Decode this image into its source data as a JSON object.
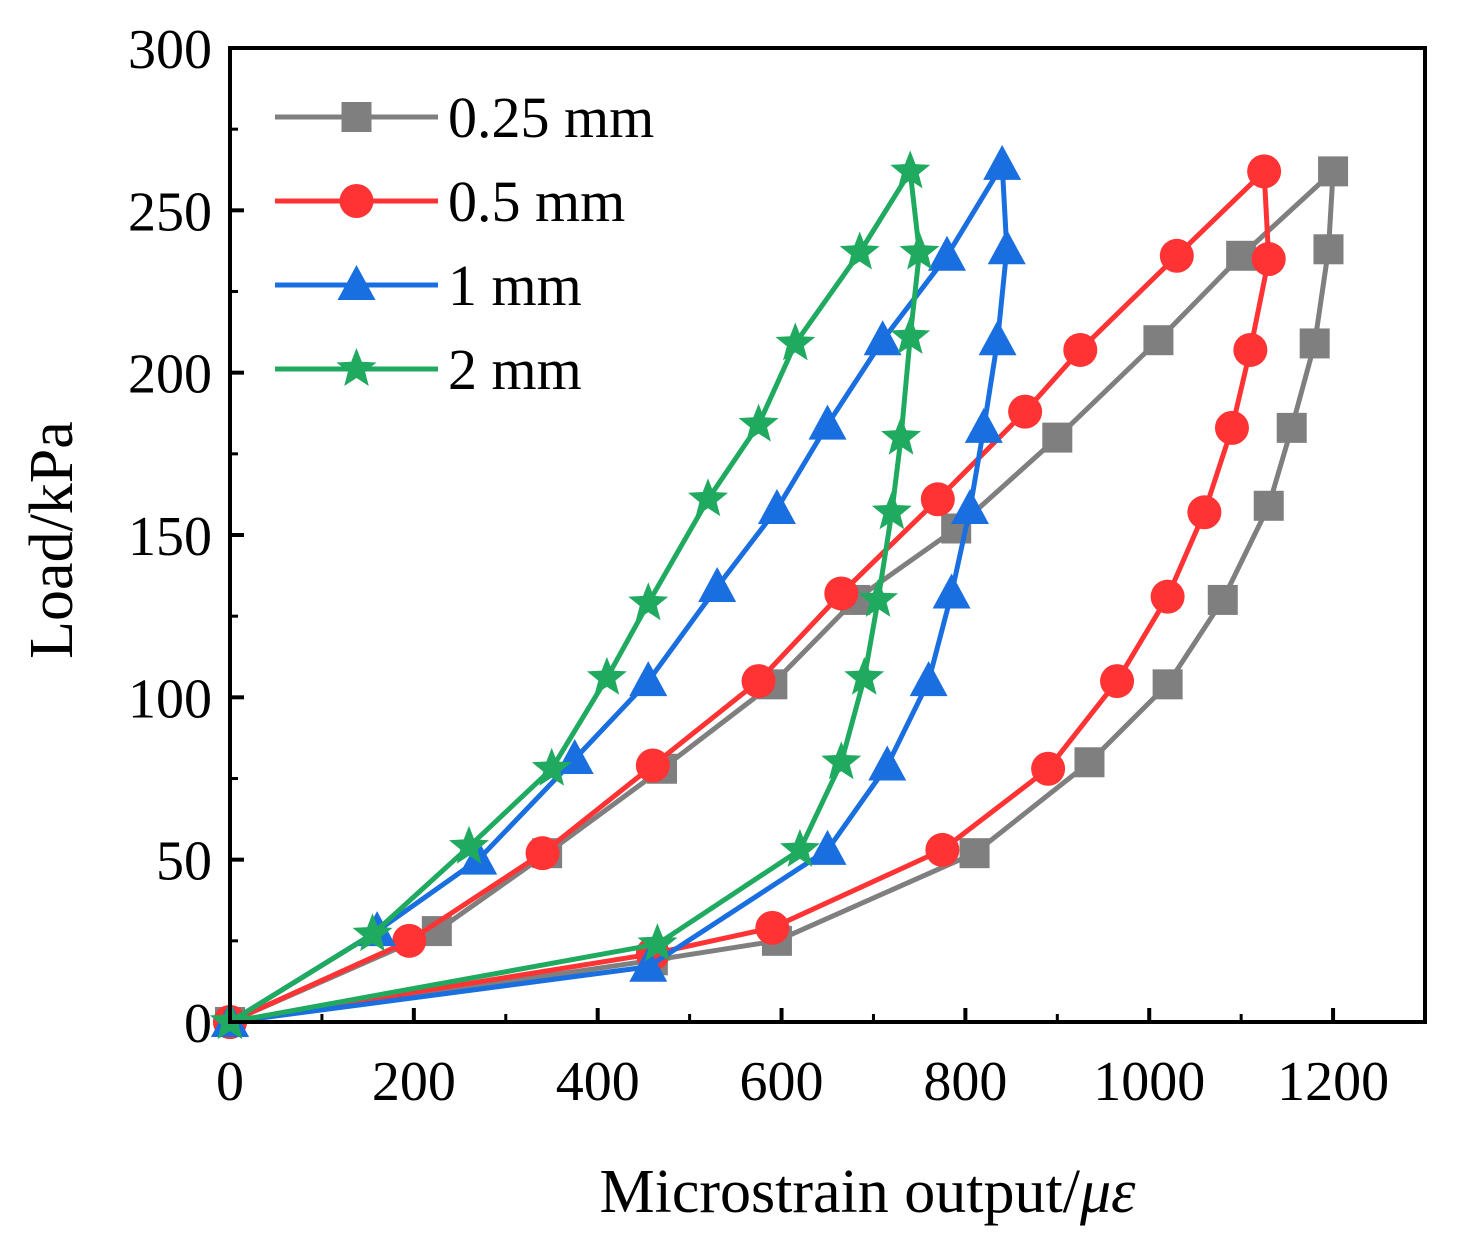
{
  "chart_data": {
    "type": "line",
    "title": "",
    "xlabel": "Microstrain output/",
    "xlabel_symbol": "με",
    "ylabel": "Load/kPa",
    "xlim": [
      0,
      1300
    ],
    "ylim": [
      0,
      300
    ],
    "xticks": [
      0,
      200,
      400,
      600,
      800,
      1000,
      1200
    ],
    "yticks": [
      0,
      50,
      100,
      150,
      200,
      250,
      300
    ],
    "grid": false,
    "legend_position": "top-left",
    "series": [
      {
        "name": "0.25 mm",
        "color": "#7f7f7f",
        "marker": "square",
        "x": [
          0,
          225,
          345,
          470,
          590,
          680,
          790,
          900,
          1010,
          1100,
          1200,
          1195,
          1180,
          1155,
          1130,
          1080,
          1020,
          935,
          810,
          595,
          460,
          0
        ],
        "y": [
          0,
          28,
          52,
          78,
          104,
          130,
          152,
          180,
          210,
          236,
          262,
          238,
          209,
          183,
          159,
          130,
          104,
          80,
          52,
          25,
          19,
          0
        ]
      },
      {
        "name": "0.5 mm",
        "color": "#ff3333",
        "marker": "circle",
        "x": [
          0,
          195,
          340,
          460,
          575,
          665,
          770,
          865,
          925,
          1030,
          1125,
          1130,
          1110,
          1090,
          1060,
          1020,
          965,
          890,
          775,
          590,
          460,
          0
        ],
        "y": [
          0,
          25,
          52,
          79,
          105,
          132,
          161,
          188,
          207,
          236,
          262,
          235,
          207,
          183,
          157,
          131,
          105,
          78,
          53,
          29,
          21,
          0
        ]
      },
      {
        "name": "1 mm",
        "color": "#1a6fe0",
        "marker": "triangle",
        "x": [
          0,
          160,
          270,
          375,
          455,
          530,
          595,
          650,
          710,
          780,
          840,
          845,
          835,
          820,
          805,
          785,
          760,
          715,
          650,
          455,
          0
        ],
        "y": [
          0,
          28,
          50,
          81,
          105,
          134,
          158,
          184,
          210,
          236,
          264,
          238,
          210,
          183,
          158,
          132,
          105,
          79,
          53,
          17,
          0
        ]
      },
      {
        "name": "2 mm",
        "color": "#1faa60",
        "marker": "star",
        "x": [
          0,
          155,
          260,
          350,
          410,
          455,
          520,
          575,
          615,
          685,
          740,
          750,
          740,
          730,
          720,
          705,
          690,
          665,
          620,
          465,
          0
        ],
        "y": [
          0,
          27,
          54,
          78,
          106,
          129,
          161,
          184,
          209,
          237,
          262,
          237,
          211,
          180,
          157,
          130,
          106,
          80,
          53,
          24,
          0
        ]
      }
    ]
  }
}
